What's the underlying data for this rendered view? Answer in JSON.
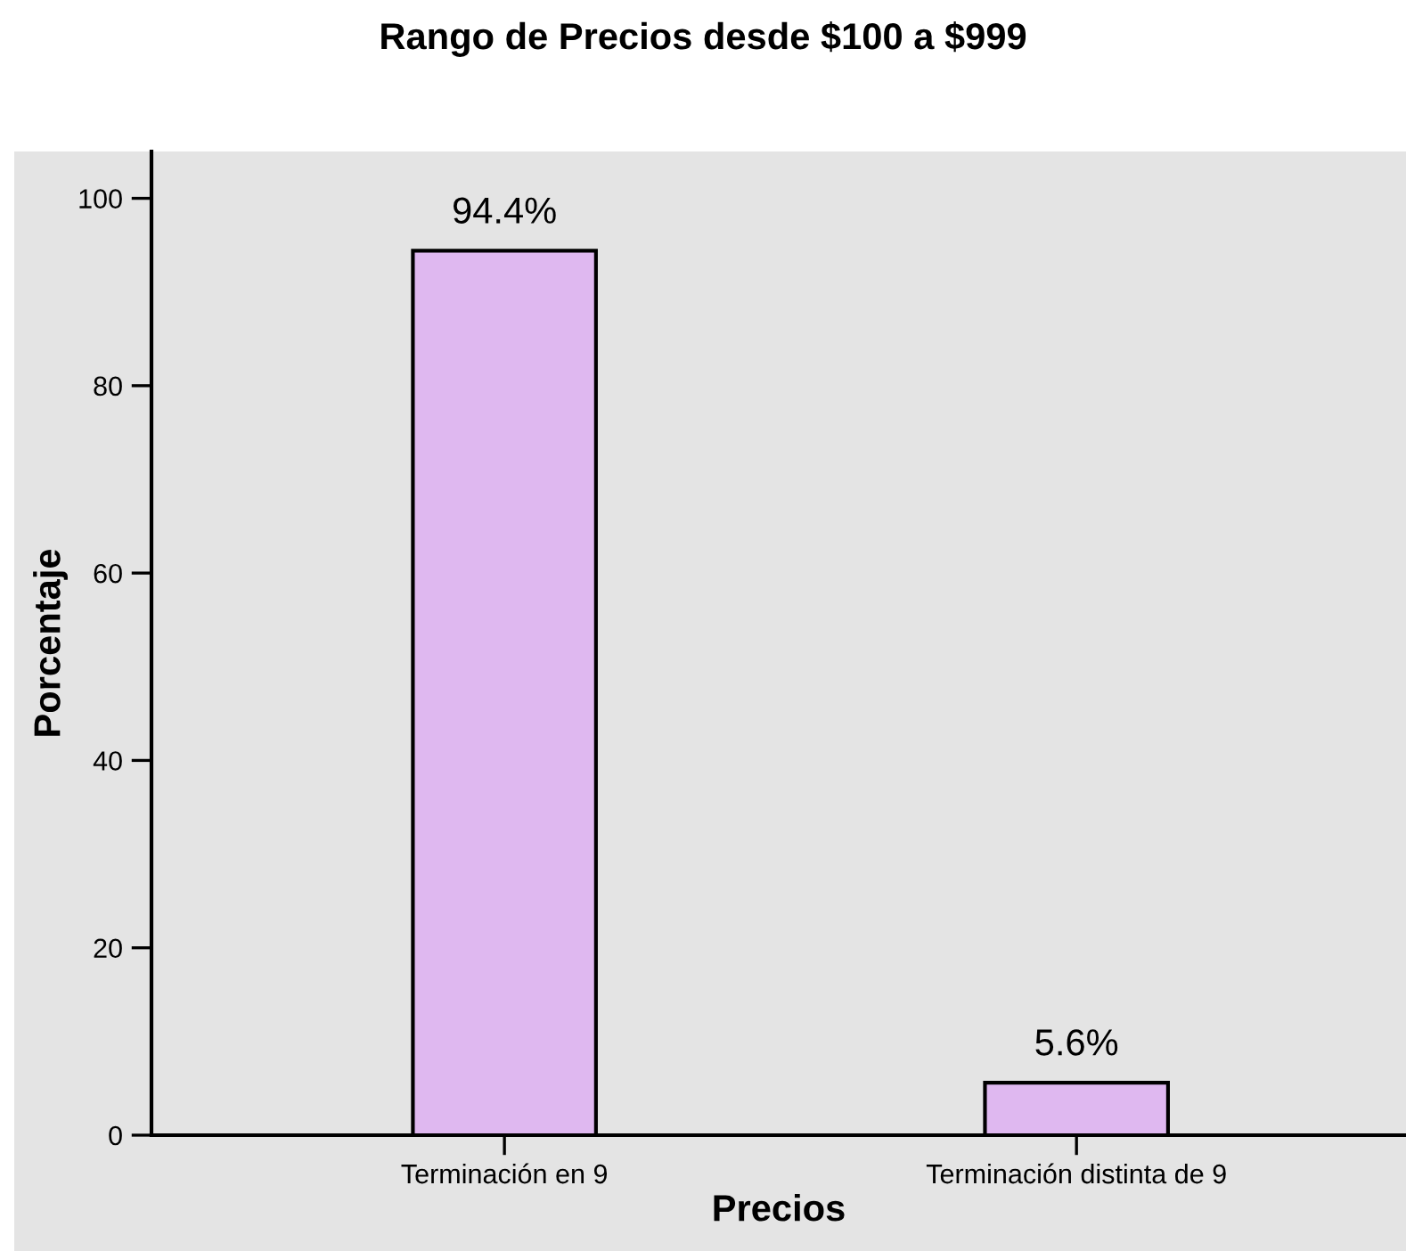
{
  "chart_data": {
    "type": "bar",
    "title": "Rango de Precios desde $100 a $999",
    "xlabel": "Precios",
    "ylabel": "Porcentaje",
    "categories": [
      "Terminación en 9",
      "Terminación distinta de 9"
    ],
    "values": [
      94.4,
      5.6
    ],
    "value_labels": [
      "94.4%",
      "5.6%"
    ],
    "color": "#dfb8f0",
    "ylim": [
      0,
      105
    ],
    "yticks": [
      0,
      20,
      40,
      60,
      80,
      100
    ],
    "grid": false,
    "legend": false
  }
}
